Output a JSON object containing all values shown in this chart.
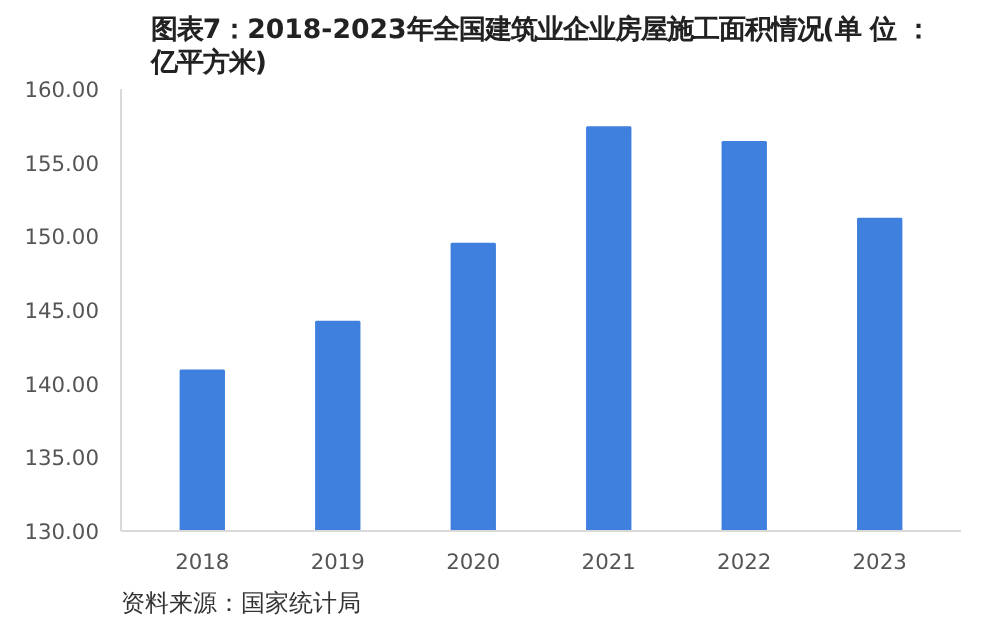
{
  "chart_data": {
    "type": "bar",
    "title": "图表7：2018-2023年全国建筑业企业房屋施工面积情况(单 位 ：亿平方米)",
    "categories": [
      "2018",
      "2019",
      "2020",
      "2021",
      "2022",
      "2023"
    ],
    "values": [
      140.9,
      144.2,
      149.5,
      157.4,
      156.4,
      151.2
    ],
    "color": "#3f7fdd",
    "ylim": [
      130,
      160
    ],
    "yticks": [
      {
        "value": 130,
        "label": "130.00"
      },
      {
        "value": 135,
        "label": "135.00"
      },
      {
        "value": 140,
        "label": "140.00"
      },
      {
        "value": 145,
        "label": "145.00"
      },
      {
        "value": 150,
        "label": "150.00"
      },
      {
        "value": 155,
        "label": "155.00"
      },
      {
        "value": 160,
        "label": "160.00"
      }
    ],
    "grid": false,
    "annotations": [
      "资料来源：国家统计局"
    ]
  }
}
